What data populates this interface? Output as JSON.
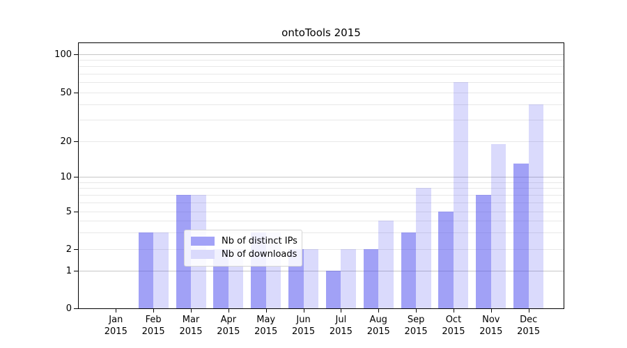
{
  "chart_data": {
    "type": "bar",
    "title": "ontoTools 2015",
    "categories": [
      "Jan 2015",
      "Feb 2015",
      "Mar 2015",
      "Apr 2015",
      "May 2015",
      "Jun 2015",
      "Jul 2015",
      "Aug 2015",
      "Sep 2015",
      "Oct 2015",
      "Nov 2015",
      "Dec 2015"
    ],
    "series": [
      {
        "name": "Nb of distinct IPs",
        "base_color": "#4444ee",
        "alpha": 0.5,
        "values": [
          0,
          3,
          7,
          2,
          3,
          2,
          1,
          2,
          3,
          5,
          7,
          13
        ]
      },
      {
        "name": "Nb of downloads",
        "base_color": "#4444ee",
        "alpha": 0.2,
        "values": [
          0,
          3,
          7,
          2,
          3,
          2,
          2,
          4,
          8,
          60,
          19,
          40
        ]
      }
    ],
    "y_axis": {
      "scale": "symlog",
      "ticks": [
        0,
        1,
        2,
        5,
        10,
        20,
        50,
        100
      ],
      "tick_labels": [
        "0",
        "1",
        "2",
        "5",
        "10",
        "20",
        "50",
        "100"
      ],
      "range": [
        0,
        100
      ]
    },
    "x_axis": {
      "year_line": "2015"
    },
    "legend": {
      "position": "lower center",
      "entries": [
        "Nb of distinct IPs",
        "Nb of downloads"
      ]
    },
    "grid": {
      "major_color": "#c6c6c6",
      "minor_color": "#e8e8e8"
    }
  }
}
